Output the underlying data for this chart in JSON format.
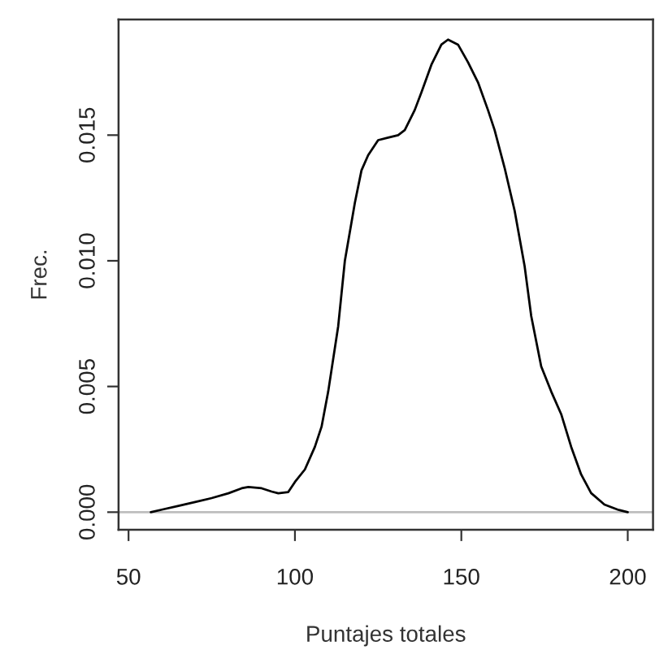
{
  "chart_data": {
    "type": "line",
    "xlabel": "Puntajes totales",
    "ylabel": "Frec.",
    "x": [
      56.7,
      60,
      65,
      70,
      75,
      80,
      84,
      86,
      90,
      93,
      95,
      98,
      100,
      103,
      106,
      108,
      110,
      113,
      115,
      118,
      120,
      122,
      125,
      128,
      131,
      133,
      136,
      138,
      141,
      144,
      146,
      149,
      152,
      155,
      158,
      160,
      163,
      166,
      169,
      171,
      174,
      177,
      180,
      183,
      186,
      189,
      193,
      197,
      200
    ],
    "series": [
      {
        "color": "#000000",
        "values": [
          0,
          0.0001,
          0.00025,
          0.0004,
          0.00056,
          0.00075,
          0.00095,
          0.001,
          0.00095,
          0.00082,
          0.00075,
          0.0008,
          0.0012,
          0.0017,
          0.0026,
          0.0034,
          0.0048,
          0.0074,
          0.01,
          0.0123,
          0.0136,
          0.0142,
          0.0148,
          0.0149,
          0.015,
          0.0152,
          0.016,
          0.0167,
          0.0178,
          0.0186,
          0.0188,
          0.0186,
          0.0179,
          0.0171,
          0.016,
          0.0152,
          0.0137,
          0.012,
          0.0098,
          0.0078,
          0.0058,
          0.0048,
          0.0039,
          0.0026,
          0.0015,
          0.00076,
          0.0003,
          0.0001,
          0
        ]
      }
    ],
    "xlim": [
      47,
      207.6
    ],
    "ylim": [
      -0.0007,
      0.0196
    ],
    "xticks": [
      50,
      100,
      150,
      200
    ],
    "yticks": [
      {
        "value": 0,
        "label": "0.000"
      },
      {
        "value": 0.005,
        "label": "0.005"
      },
      {
        "value": 0.01,
        "label": "0.010"
      },
      {
        "value": 0.015,
        "label": "0.015"
      }
    ],
    "ref_lines": [
      {
        "axis": "y",
        "value": 0,
        "color": "#bebebe"
      }
    ],
    "grid": false,
    "legend": false,
    "marker": "none",
    "line_style": "solid"
  }
}
